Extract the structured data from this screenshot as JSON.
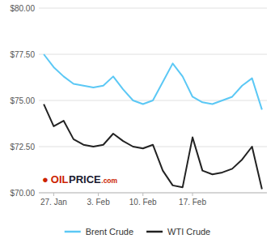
{
  "chart_data": {
    "type": "line",
    "x": [
      0,
      1,
      2,
      3,
      4,
      5,
      6,
      7,
      8,
      9,
      10,
      11,
      12,
      13,
      14,
      15,
      16,
      17,
      18,
      19,
      20,
      21,
      22
    ],
    "series": [
      {
        "name": "Brent Crude",
        "color": "#5BC8F5",
        "values": [
          77.5,
          76.8,
          76.3,
          75.9,
          75.8,
          75.7,
          75.8,
          76.3,
          75.6,
          75.0,
          74.8,
          75.0,
          76.0,
          77.0,
          76.3,
          75.2,
          74.9,
          74.8,
          75.0,
          75.2,
          75.8,
          76.2,
          74.5
        ]
      },
      {
        "name": "WTI Crude",
        "color": "#222222",
        "values": [
          74.8,
          73.6,
          73.9,
          72.9,
          72.6,
          72.5,
          72.6,
          73.2,
          72.8,
          72.5,
          72.4,
          72.6,
          71.2,
          70.4,
          70.3,
          73.0,
          71.2,
          71.0,
          71.1,
          71.3,
          71.8,
          72.5,
          70.2
        ]
      }
    ],
    "xlim": [
      -0.5,
      22.5
    ],
    "xticks": [
      {
        "value": 1,
        "label": "27. Jan"
      },
      {
        "value": 5.5,
        "label": "3. Feb"
      },
      {
        "value": 10,
        "label": "10. Feb"
      },
      {
        "value": 15,
        "label": "17. Feb"
      }
    ],
    "ylim": [
      70.0,
      80.0
    ],
    "yticks": [
      {
        "value": 70.0,
        "label": "$70.00"
      },
      {
        "value": 72.5,
        "label": "$72.50"
      },
      {
        "value": 75.0,
        "label": "$75.00"
      },
      {
        "value": 77.5,
        "label": "$77.50"
      },
      {
        "value": 80.0,
        "label": "$80.00"
      }
    ],
    "grid": true,
    "legend": "bottom",
    "annotations": [
      {
        "text": "●",
        "color": "#cc2200"
      },
      {
        "text": "OIL",
        "color": "#cc2200"
      },
      {
        "text": "PRICE",
        "color": "#1a1a2e"
      },
      {
        "text": ".com",
        "color": "#cc2200"
      }
    ]
  }
}
